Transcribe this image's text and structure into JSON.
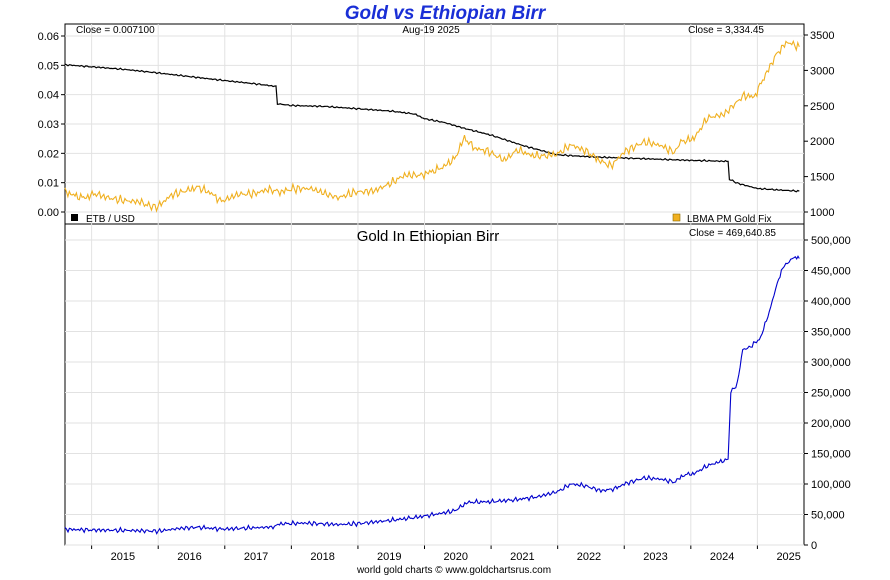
{
  "title": "Gold vs Ethiopian Birr",
  "footer": "world gold charts © www.goldchartsrus.com",
  "chart_data": [
    {
      "type": "line",
      "date_label": "Aug-19  2025",
      "left_close": "Close = 0.007100",
      "right_close": "Close = 3,334.45",
      "legend_left": "ETB / USD",
      "legend_right": "LBMA PM Gold Fix",
      "x_ticks": [
        "2015",
        "2016",
        "2017",
        "2018",
        "2019",
        "2020",
        "2021",
        "2022",
        "2023",
        "2024",
        "2025"
      ],
      "y_left": {
        "lim": [
          0,
          0.06
        ],
        "ticks": [
          "0.00",
          "0.01",
          "0.02",
          "0.03",
          "0.04",
          "0.05",
          "0.06"
        ]
      },
      "y_right": {
        "lim": [
          950,
          3550
        ],
        "ticks": [
          "1000",
          "1500",
          "2000",
          "2500",
          "3000",
          "3500"
        ]
      },
      "grid": true,
      "series": [
        {
          "name": "ETB / USD",
          "color": "#000000",
          "axis": "left",
          "points": [
            [
              2014.6,
              0.0502
            ],
            [
              2015.0,
              0.0495
            ],
            [
              2015.5,
              0.0486
            ],
            [
              2016.0,
              0.0474
            ],
            [
              2016.5,
              0.0461
            ],
            [
              2017.0,
              0.0448
            ],
            [
              2017.5,
              0.0436
            ],
            [
              2017.77,
              0.0428
            ],
            [
              2017.79,
              0.0369
            ],
            [
              2018.0,
              0.0363
            ],
            [
              2018.5,
              0.036
            ],
            [
              2019.0,
              0.0352
            ],
            [
              2019.5,
              0.0344
            ],
            [
              2019.85,
              0.0334
            ],
            [
              2020.0,
              0.0318
            ],
            [
              2020.3,
              0.0305
            ],
            [
              2020.6,
              0.0285
            ],
            [
              2021.0,
              0.0262
            ],
            [
              2021.5,
              0.0225
            ],
            [
              2022.0,
              0.0195
            ],
            [
              2022.5,
              0.0188
            ],
            [
              2023.0,
              0.0184
            ],
            [
              2023.5,
              0.018
            ],
            [
              2024.0,
              0.0176
            ],
            [
              2024.5,
              0.0173
            ],
            [
              2024.56,
              0.0172
            ],
            [
              2024.58,
              0.0112
            ],
            [
              2024.7,
              0.0098
            ],
            [
              2025.0,
              0.008
            ],
            [
              2025.4,
              0.0074
            ],
            [
              2025.63,
              0.0071
            ]
          ]
        },
        {
          "name": "LBMA PM Gold Fix",
          "color": "#f0b020",
          "axis": "right",
          "points": [
            [
              2014.6,
              1290
            ],
            [
              2014.75,
              1230
            ],
            [
              2014.9,
              1200
            ],
            [
              2015.05,
              1260
            ],
            [
              2015.25,
              1200
            ],
            [
              2015.5,
              1160
            ],
            [
              2015.75,
              1140
            ],
            [
              2015.9,
              1070
            ],
            [
              2016.0,
              1080
            ],
            [
              2016.2,
              1240
            ],
            [
              2016.45,
              1310
            ],
            [
              2016.6,
              1350
            ],
            [
              2016.8,
              1260
            ],
            [
              2016.95,
              1150
            ],
            [
              2017.2,
              1250
            ],
            [
              2017.45,
              1260
            ],
            [
              2017.65,
              1320
            ],
            [
              2017.85,
              1280
            ],
            [
              2018.0,
              1330
            ],
            [
              2018.3,
              1330
            ],
            [
              2018.6,
              1230
            ],
            [
              2018.7,
              1200
            ],
            [
              2018.95,
              1280
            ],
            [
              2019.25,
              1300
            ],
            [
              2019.5,
              1410
            ],
            [
              2019.7,
              1520
            ],
            [
              2019.95,
              1520
            ],
            [
              2020.1,
              1570
            ],
            [
              2020.25,
              1620
            ],
            [
              2020.45,
              1750
            ],
            [
              2020.6,
              2050
            ],
            [
              2020.75,
              1900
            ],
            [
              2020.95,
              1860
            ],
            [
              2021.2,
              1730
            ],
            [
              2021.4,
              1880
            ],
            [
              2021.6,
              1800
            ],
            [
              2021.8,
              1790
            ],
            [
              2022.0,
              1820
            ],
            [
              2022.2,
              1950
            ],
            [
              2022.45,
              1850
            ],
            [
              2022.6,
              1740
            ],
            [
              2022.8,
              1650
            ],
            [
              2023.0,
              1850
            ],
            [
              2023.3,
              1990
            ],
            [
              2023.55,
              1940
            ],
            [
              2023.75,
              1840
            ],
            [
              2023.85,
              1990
            ],
            [
              2024.05,
              2040
            ],
            [
              2024.25,
              2330
            ],
            [
              2024.5,
              2380
            ],
            [
              2024.8,
              2650
            ],
            [
              2024.95,
              2620
            ],
            [
              2025.1,
              2900
            ],
            [
              2025.3,
              3250
            ],
            [
              2025.45,
              3400
            ],
            [
              2025.63,
              3334
            ]
          ]
        }
      ]
    },
    {
      "type": "line",
      "title": "Gold In Ethiopian Birr",
      "right_close": "Close = 469,640.85",
      "x_ticks": [
        "2015",
        "2016",
        "2017",
        "2018",
        "2019",
        "2020",
        "2021",
        "2022",
        "2023",
        "2024",
        "2025"
      ],
      "y_right": {
        "lim": [
          0,
          500000
        ],
        "ticks": [
          "0",
          "50,000",
          "100,000",
          "150,000",
          "200,000",
          "250,000",
          "300,000",
          "350,000",
          "400,000",
          "450,000",
          "500,000"
        ]
      },
      "grid": true,
      "series": [
        {
          "color": "#0000cc",
          "axis": "right",
          "points": [
            [
              2014.6,
              25700
            ],
            [
              2015.0,
              24600
            ],
            [
              2015.5,
              24000
            ],
            [
              2016.0,
              22700
            ],
            [
              2016.3,
              27000
            ],
            [
              2016.6,
              29200
            ],
            [
              2016.95,
              26000
            ],
            [
              2017.4,
              28000
            ],
            [
              2017.77,
              29800
            ],
            [
              2017.8,
              34500
            ],
            [
              2018.2,
              36000
            ],
            [
              2018.7,
              33500
            ],
            [
              2019.0,
              35000
            ],
            [
              2019.5,
              40500
            ],
            [
              2019.85,
              45000
            ],
            [
              2020.2,
              51000
            ],
            [
              2020.45,
              56000
            ],
            [
              2020.65,
              70000
            ],
            [
              2021.0,
              71000
            ],
            [
              2021.35,
              74000
            ],
            [
              2021.7,
              79000
            ],
            [
              2022.0,
              87500
            ],
            [
              2022.2,
              100000
            ],
            [
              2022.4,
              97500
            ],
            [
              2022.65,
              89000
            ],
            [
              2022.85,
              92000
            ],
            [
              2023.0,
              100000
            ],
            [
              2023.3,
              110000
            ],
            [
              2023.55,
              108000
            ],
            [
              2023.75,
              103000
            ],
            [
              2023.9,
              115000
            ],
            [
              2024.05,
              117000
            ],
            [
              2024.25,
              130000
            ],
            [
              2024.45,
              137000
            ],
            [
              2024.56,
              140000
            ],
            [
              2024.6,
              250000
            ],
            [
              2024.7,
              265000
            ],
            [
              2024.78,
              320000
            ],
            [
              2024.9,
              325000
            ],
            [
              2025.05,
              340000
            ],
            [
              2025.2,
              390000
            ],
            [
              2025.3,
              430000
            ],
            [
              2025.38,
              455000
            ],
            [
              2025.45,
              462000
            ],
            [
              2025.55,
              472000
            ],
            [
              2025.63,
              469640
            ]
          ]
        }
      ]
    }
  ]
}
